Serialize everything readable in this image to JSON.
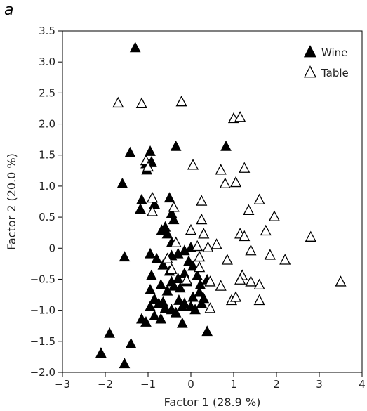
{
  "panel_label": "a",
  "chart_data": {
    "type": "scatter",
    "xlabel": "Factor 1 (28.9 %)",
    "ylabel": "Factor 2 (20.0 %)",
    "xlim": [
      -3,
      4
    ],
    "ylim": [
      -2.0,
      3.5
    ],
    "x_ticks": [
      -3,
      -2,
      -1,
      0,
      1,
      2,
      3,
      4
    ],
    "x_tick_labels": [
      "−3",
      "−2",
      "−1",
      "0",
      "1",
      "2",
      "3",
      "4"
    ],
    "y_ticks": [
      -2.0,
      -1.5,
      -1.0,
      -0.5,
      0,
      0.5,
      1.0,
      1.5,
      2.0,
      2.5,
      3.0,
      3.5
    ],
    "y_tick_labels": [
      "−2.0",
      "−1.5",
      "−1.0",
      "−0.5",
      "0",
      "0.5",
      "1.0",
      "1.5",
      "2.0",
      "2.5",
      "3.0",
      "3.5"
    ],
    "grid": false,
    "legend": {
      "position": "top-right"
    },
    "series": [
      {
        "name": "Wine",
        "marker": "triangle-filled",
        "color": "#000000",
        "points": [
          [
            -1.3,
            3.22
          ],
          [
            -1.42,
            1.53
          ],
          [
            -0.95,
            1.55
          ],
          [
            -0.35,
            1.63
          ],
          [
            0.82,
            1.63
          ],
          [
            -1.6,
            1.03
          ],
          [
            -1.05,
            1.35
          ],
          [
            -0.92,
            1.38
          ],
          [
            -1.03,
            1.25
          ],
          [
            -1.15,
            0.77
          ],
          [
            -0.5,
            0.8
          ],
          [
            -1.18,
            0.62
          ],
          [
            -0.85,
            0.7
          ],
          [
            -0.45,
            0.55
          ],
          [
            -0.6,
            0.33
          ],
          [
            -0.55,
            0.22
          ],
          [
            -0.4,
            0.45
          ],
          [
            -0.68,
            0.28
          ],
          [
            -0.45,
            0.08
          ],
          [
            -1.55,
            -0.15
          ],
          [
            -0.95,
            -0.1
          ],
          [
            -0.8,
            -0.18
          ],
          [
            -0.65,
            -0.28
          ],
          [
            -0.45,
            -0.13
          ],
          [
            -0.3,
            -0.1
          ],
          [
            -0.15,
            -0.05
          ],
          [
            0.0,
            0.0
          ],
          [
            -0.05,
            -0.22
          ],
          [
            -0.92,
            -0.45
          ],
          [
            -0.5,
            -0.38
          ],
          [
            -0.7,
            -0.6
          ],
          [
            -0.45,
            -0.55
          ],
          [
            -0.3,
            -0.5
          ],
          [
            -0.15,
            -0.42
          ],
          [
            0.05,
            -0.3
          ],
          [
            -0.95,
            -0.68
          ],
          [
            -0.85,
            -0.83
          ],
          [
            -0.65,
            -0.88
          ],
          [
            -0.55,
            -0.7
          ],
          [
            -0.4,
            -0.62
          ],
          [
            -0.25,
            -0.65
          ],
          [
            -0.1,
            -0.55
          ],
          [
            0.15,
            -0.45
          ],
          [
            0.22,
            -0.6
          ],
          [
            0.38,
            -0.52
          ],
          [
            -0.95,
            -0.95
          ],
          [
            -0.75,
            -0.9
          ],
          [
            -0.6,
            -0.98
          ],
          [
            -0.45,
            -1.0
          ],
          [
            -0.28,
            -0.85
          ],
          [
            -0.15,
            -0.9
          ],
          [
            0.05,
            -0.8
          ],
          [
            0.2,
            -0.72
          ],
          [
            0.3,
            -0.82
          ],
          [
            -1.15,
            -1.15
          ],
          [
            -1.05,
            -1.2
          ],
          [
            -0.85,
            -1.1
          ],
          [
            -0.7,
            -1.15
          ],
          [
            -0.35,
            -1.05
          ],
          [
            -0.2,
            -0.95
          ],
          [
            0.0,
            -0.95
          ],
          [
            0.25,
            -0.9
          ],
          [
            0.1,
            -1.0
          ],
          [
            -0.2,
            -1.22
          ],
          [
            0.38,
            -1.35
          ],
          [
            -1.9,
            -1.38
          ],
          [
            -2.1,
            -1.7
          ],
          [
            -1.4,
            -1.55
          ],
          [
            -1.55,
            -1.87
          ]
        ]
      },
      {
        "name": "Table",
        "marker": "triangle-open",
        "color": "#000000",
        "points": [
          [
            -1.7,
            2.33
          ],
          [
            -1.15,
            2.32
          ],
          [
            -0.22,
            2.35
          ],
          [
            1.0,
            2.08
          ],
          [
            1.15,
            2.1
          ],
          [
            -1.05,
            1.4
          ],
          [
            -1.0,
            1.3
          ],
          [
            0.05,
            1.33
          ],
          [
            0.7,
            1.25
          ],
          [
            1.25,
            1.28
          ],
          [
            0.8,
            1.03
          ],
          [
            1.05,
            1.05
          ],
          [
            -0.9,
            0.8
          ],
          [
            -0.4,
            0.65
          ],
          [
            0.25,
            0.75
          ],
          [
            -0.9,
            0.58
          ],
          [
            0.25,
            0.45
          ],
          [
            1.35,
            0.6
          ],
          [
            1.6,
            0.77
          ],
          [
            1.95,
            0.5
          ],
          [
            0.0,
            0.28
          ],
          [
            0.3,
            0.22
          ],
          [
            1.15,
            0.22
          ],
          [
            1.25,
            0.18
          ],
          [
            1.75,
            0.27
          ],
          [
            2.8,
            0.17
          ],
          [
            -0.35,
            0.08
          ],
          [
            0.15,
            0.02
          ],
          [
            0.4,
            0.0
          ],
          [
            0.6,
            0.05
          ],
          [
            -0.55,
            -0.18
          ],
          [
            0.2,
            -0.15
          ],
          [
            0.85,
            -0.2
          ],
          [
            1.4,
            -0.05
          ],
          [
            1.85,
            -0.12
          ],
          [
            2.2,
            -0.2
          ],
          [
            -0.45,
            -0.35
          ],
          [
            0.2,
            -0.32
          ],
          [
            1.2,
            -0.45
          ],
          [
            1.15,
            -0.52
          ],
          [
            -0.1,
            -0.52
          ],
          [
            0.45,
            -0.55
          ],
          [
            0.7,
            -0.62
          ],
          [
            1.4,
            -0.55
          ],
          [
            1.6,
            -0.6
          ],
          [
            3.5,
            -0.55
          ],
          [
            0.95,
            -0.85
          ],
          [
            1.05,
            -0.8
          ],
          [
            1.6,
            -0.85
          ],
          [
            0.45,
            -0.98
          ]
        ]
      }
    ]
  }
}
